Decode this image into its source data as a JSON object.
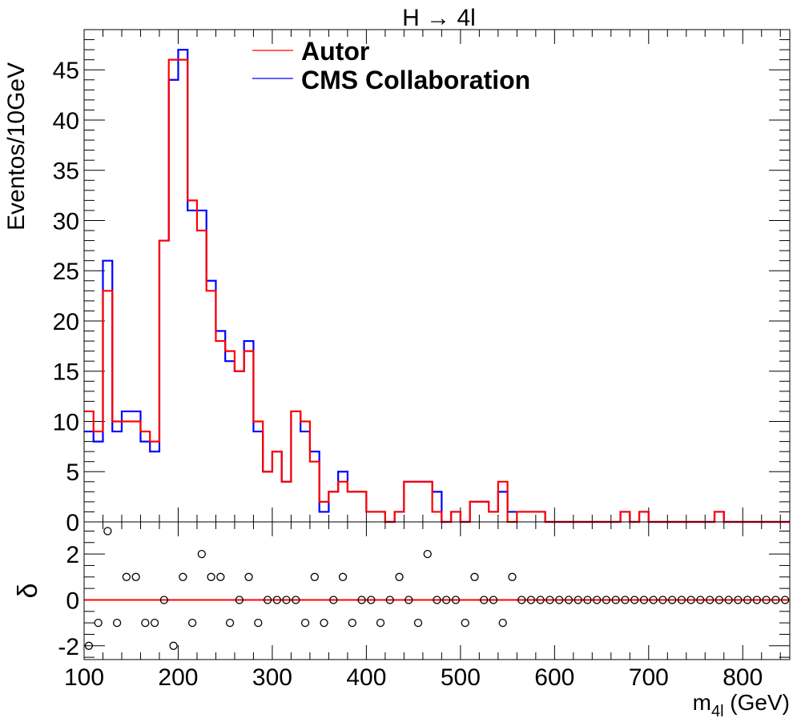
{
  "chart_data": [
    {
      "type": "histogram-step",
      "title": "H → 4l",
      "ylabel": "Eventos/10GeV",
      "xlabel": "",
      "xlim": [
        100,
        850
      ],
      "ylim": [
        0,
        49
      ],
      "bin_width": 10,
      "x_ticks": [
        100,
        200,
        300,
        400,
        500,
        600,
        700,
        800
      ],
      "y_ticks": [
        0,
        5,
        10,
        15,
        20,
        25,
        30,
        35,
        40,
        45
      ],
      "legend_position": "top-center",
      "series": [
        {
          "name": "Autor",
          "color": "#ff0000",
          "values": [
            11,
            9,
            23,
            10,
            10,
            10,
            9,
            8,
            28,
            46,
            46,
            32,
            29,
            23,
            18,
            17,
            15,
            17,
            10,
            5,
            7,
            4,
            11,
            10,
            6,
            2,
            3,
            4,
            3,
            3,
            1,
            1,
            0,
            1,
            4,
            4,
            4,
            1,
            0,
            1,
            0,
            2,
            2,
            1,
            4,
            0,
            1,
            1,
            1,
            0,
            0,
            0,
            0,
            0,
            0,
            0,
            0,
            1,
            0,
            1,
            0,
            0,
            0,
            0,
            0,
            0,
            0,
            1,
            0,
            0,
            0,
            0,
            0,
            0,
            0
          ]
        },
        {
          "name": "CMS Collaboration",
          "color": "#0000ff",
          "values": [
            9,
            8,
            26,
            9,
            11,
            11,
            8,
            7,
            28,
            44,
            47,
            31,
            31,
            24,
            19,
            16,
            15,
            18,
            9,
            5,
            7,
            4,
            11,
            9,
            7,
            1,
            3,
            5,
            3,
            3,
            1,
            1,
            0,
            1,
            4,
            4,
            4,
            3,
            0,
            1,
            0,
            2,
            2,
            1,
            3,
            1,
            1,
            1,
            1,
            0,
            0,
            0,
            0,
            0,
            0,
            0,
            0,
            1,
            0,
            1,
            0,
            0,
            0,
            0,
            0,
            0,
            0,
            1,
            0,
            0,
            0,
            0,
            0,
            0,
            0
          ]
        }
      ]
    },
    {
      "type": "scatter",
      "ylabel": "δ",
      "xlabel": "m_4l (GeV)",
      "xlim": [
        100,
        850
      ],
      "ylim": [
        -2.6,
        3.4
      ],
      "x_ticks": [
        100,
        200,
        300,
        400,
        500,
        600,
        700,
        800
      ],
      "y_ticks": [
        -2,
        0,
        2
      ],
      "reference_line": {
        "y": 0,
        "color": "#ff0000"
      },
      "x": [
        105,
        115,
        125,
        135,
        145,
        155,
        165,
        175,
        185,
        195,
        205,
        215,
        225,
        235,
        245,
        255,
        265,
        275,
        285,
        295,
        305,
        315,
        325,
        335,
        345,
        355,
        365,
        375,
        385,
        395,
        405,
        415,
        425,
        435,
        445,
        455,
        465,
        475,
        485,
        495,
        505,
        515,
        525,
        535,
        545,
        555,
        565,
        575,
        585,
        595,
        605,
        615,
        625,
        635,
        645,
        655,
        665,
        675,
        685,
        695,
        705,
        715,
        725,
        735,
        745,
        755,
        765,
        775,
        785,
        795,
        805,
        815,
        825,
        835,
        845
      ],
      "y": [
        -2,
        -1,
        3,
        -1,
        1,
        1,
        -1,
        -1,
        0,
        -2,
        1,
        -1,
        2,
        1,
        1,
        -1,
        0,
        1,
        -1,
        0,
        0,
        0,
        0,
        -1,
        1,
        -1,
        0,
        1,
        -1,
        0,
        0,
        -1,
        0,
        1,
        0,
        -1,
        2,
        0,
        0,
        0,
        -1,
        1,
        0,
        0,
        -1,
        1,
        0,
        0,
        0,
        0,
        0,
        0,
        0,
        0,
        0,
        0,
        0,
        0,
        0,
        0,
        0,
        0,
        0,
        0,
        0,
        0,
        0,
        0,
        0,
        0,
        0,
        0,
        0,
        0,
        0
      ]
    }
  ],
  "title": "H → 4l",
  "legend": {
    "autor_label": "Autor",
    "cms_label": "CMS Collaboration"
  },
  "axes": {
    "top_ylabel": "Eventos/10GeV",
    "bottom_ylabel": "δ",
    "xlabel_main": "m",
    "xlabel_sub": "4l",
    "xlabel_unit": " (GeV)"
  }
}
